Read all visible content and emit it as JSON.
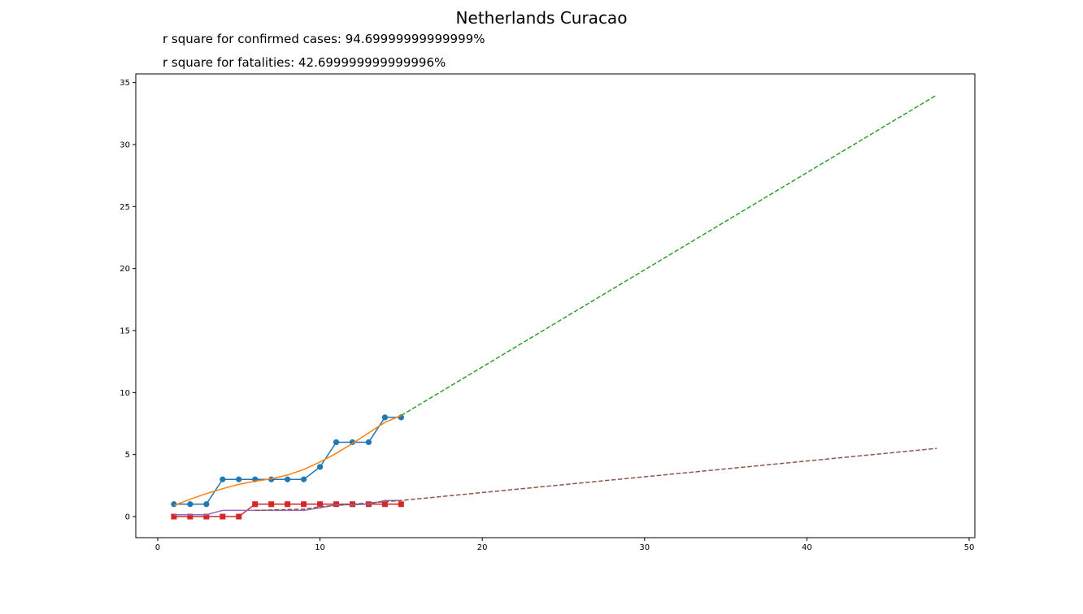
{
  "title": "Netherlands Curacao",
  "annotations": {
    "r2_confirmed": "r square for confirmed cases: 94.69999999999999%",
    "r2_fatalities": "r square for fatalities: 42.699999999999996%"
  },
  "chart_data": {
    "type": "line",
    "title": "Netherlands Curacao",
    "xlabel": "",
    "ylabel": "",
    "xlim": [
      -1.35,
      50.35
    ],
    "ylim": [
      -1.7,
      35.7
    ],
    "xticks": [
      0,
      10,
      20,
      30,
      40,
      50
    ],
    "yticks": [
      0,
      5,
      10,
      15,
      20,
      25,
      30,
      35
    ],
    "grid": false,
    "series": [
      {
        "color": "#1f77b4",
        "marker": "circle",
        "style": "solid",
        "x": [
          1,
          2,
          3,
          4,
          5,
          6,
          7,
          8,
          9,
          10,
          11,
          12,
          13,
          14,
          15
        ],
        "y": [
          1,
          1,
          1,
          3,
          3,
          3,
          3,
          3,
          3,
          4,
          6,
          6,
          6,
          8,
          8
        ]
      },
      {
        "color": "#ff7f0e",
        "marker": "none",
        "style": "solid",
        "x": [
          1,
          2,
          3,
          4,
          5,
          6,
          7,
          8,
          9,
          10,
          11,
          12,
          13,
          14,
          15
        ],
        "y": [
          0.9,
          1.4,
          1.85,
          2.25,
          2.6,
          2.85,
          3.05,
          3.35,
          3.8,
          4.4,
          5.1,
          5.9,
          6.75,
          7.6,
          8.15
        ]
      },
      {
        "color": "#2ca02c",
        "marker": "none",
        "style": "dashed",
        "x": [
          15,
          48
        ],
        "y": [
          8.15,
          34.0
        ]
      },
      {
        "color": "#d62728",
        "marker": "square",
        "style": "solid",
        "x": [
          1,
          2,
          3,
          4,
          5,
          6,
          7,
          8,
          9,
          10,
          11,
          12,
          13,
          14,
          15
        ],
        "y": [
          0,
          0,
          0,
          0,
          0,
          1,
          1,
          1,
          1,
          1,
          1,
          1,
          1,
          1,
          1
        ]
      },
      {
        "color": "#9467bd",
        "marker": "none",
        "style": "solid",
        "x": [
          1,
          2,
          3,
          4,
          5,
          6,
          7,
          8,
          9,
          10,
          11,
          12,
          13,
          14,
          15
        ],
        "y": [
          0.15,
          0.15,
          0.15,
          0.5,
          0.5,
          0.5,
          0.5,
          0.5,
          0.5,
          0.7,
          0.95,
          0.95,
          1.0,
          1.3,
          1.3
        ]
      },
      {
        "color": "#8c564b",
        "marker": "none",
        "style": "dashed",
        "x": [
          6,
          9,
          10,
          15,
          48
        ],
        "y": [
          0.5,
          0.6,
          0.8,
          1.3,
          5.5
        ]
      }
    ]
  }
}
